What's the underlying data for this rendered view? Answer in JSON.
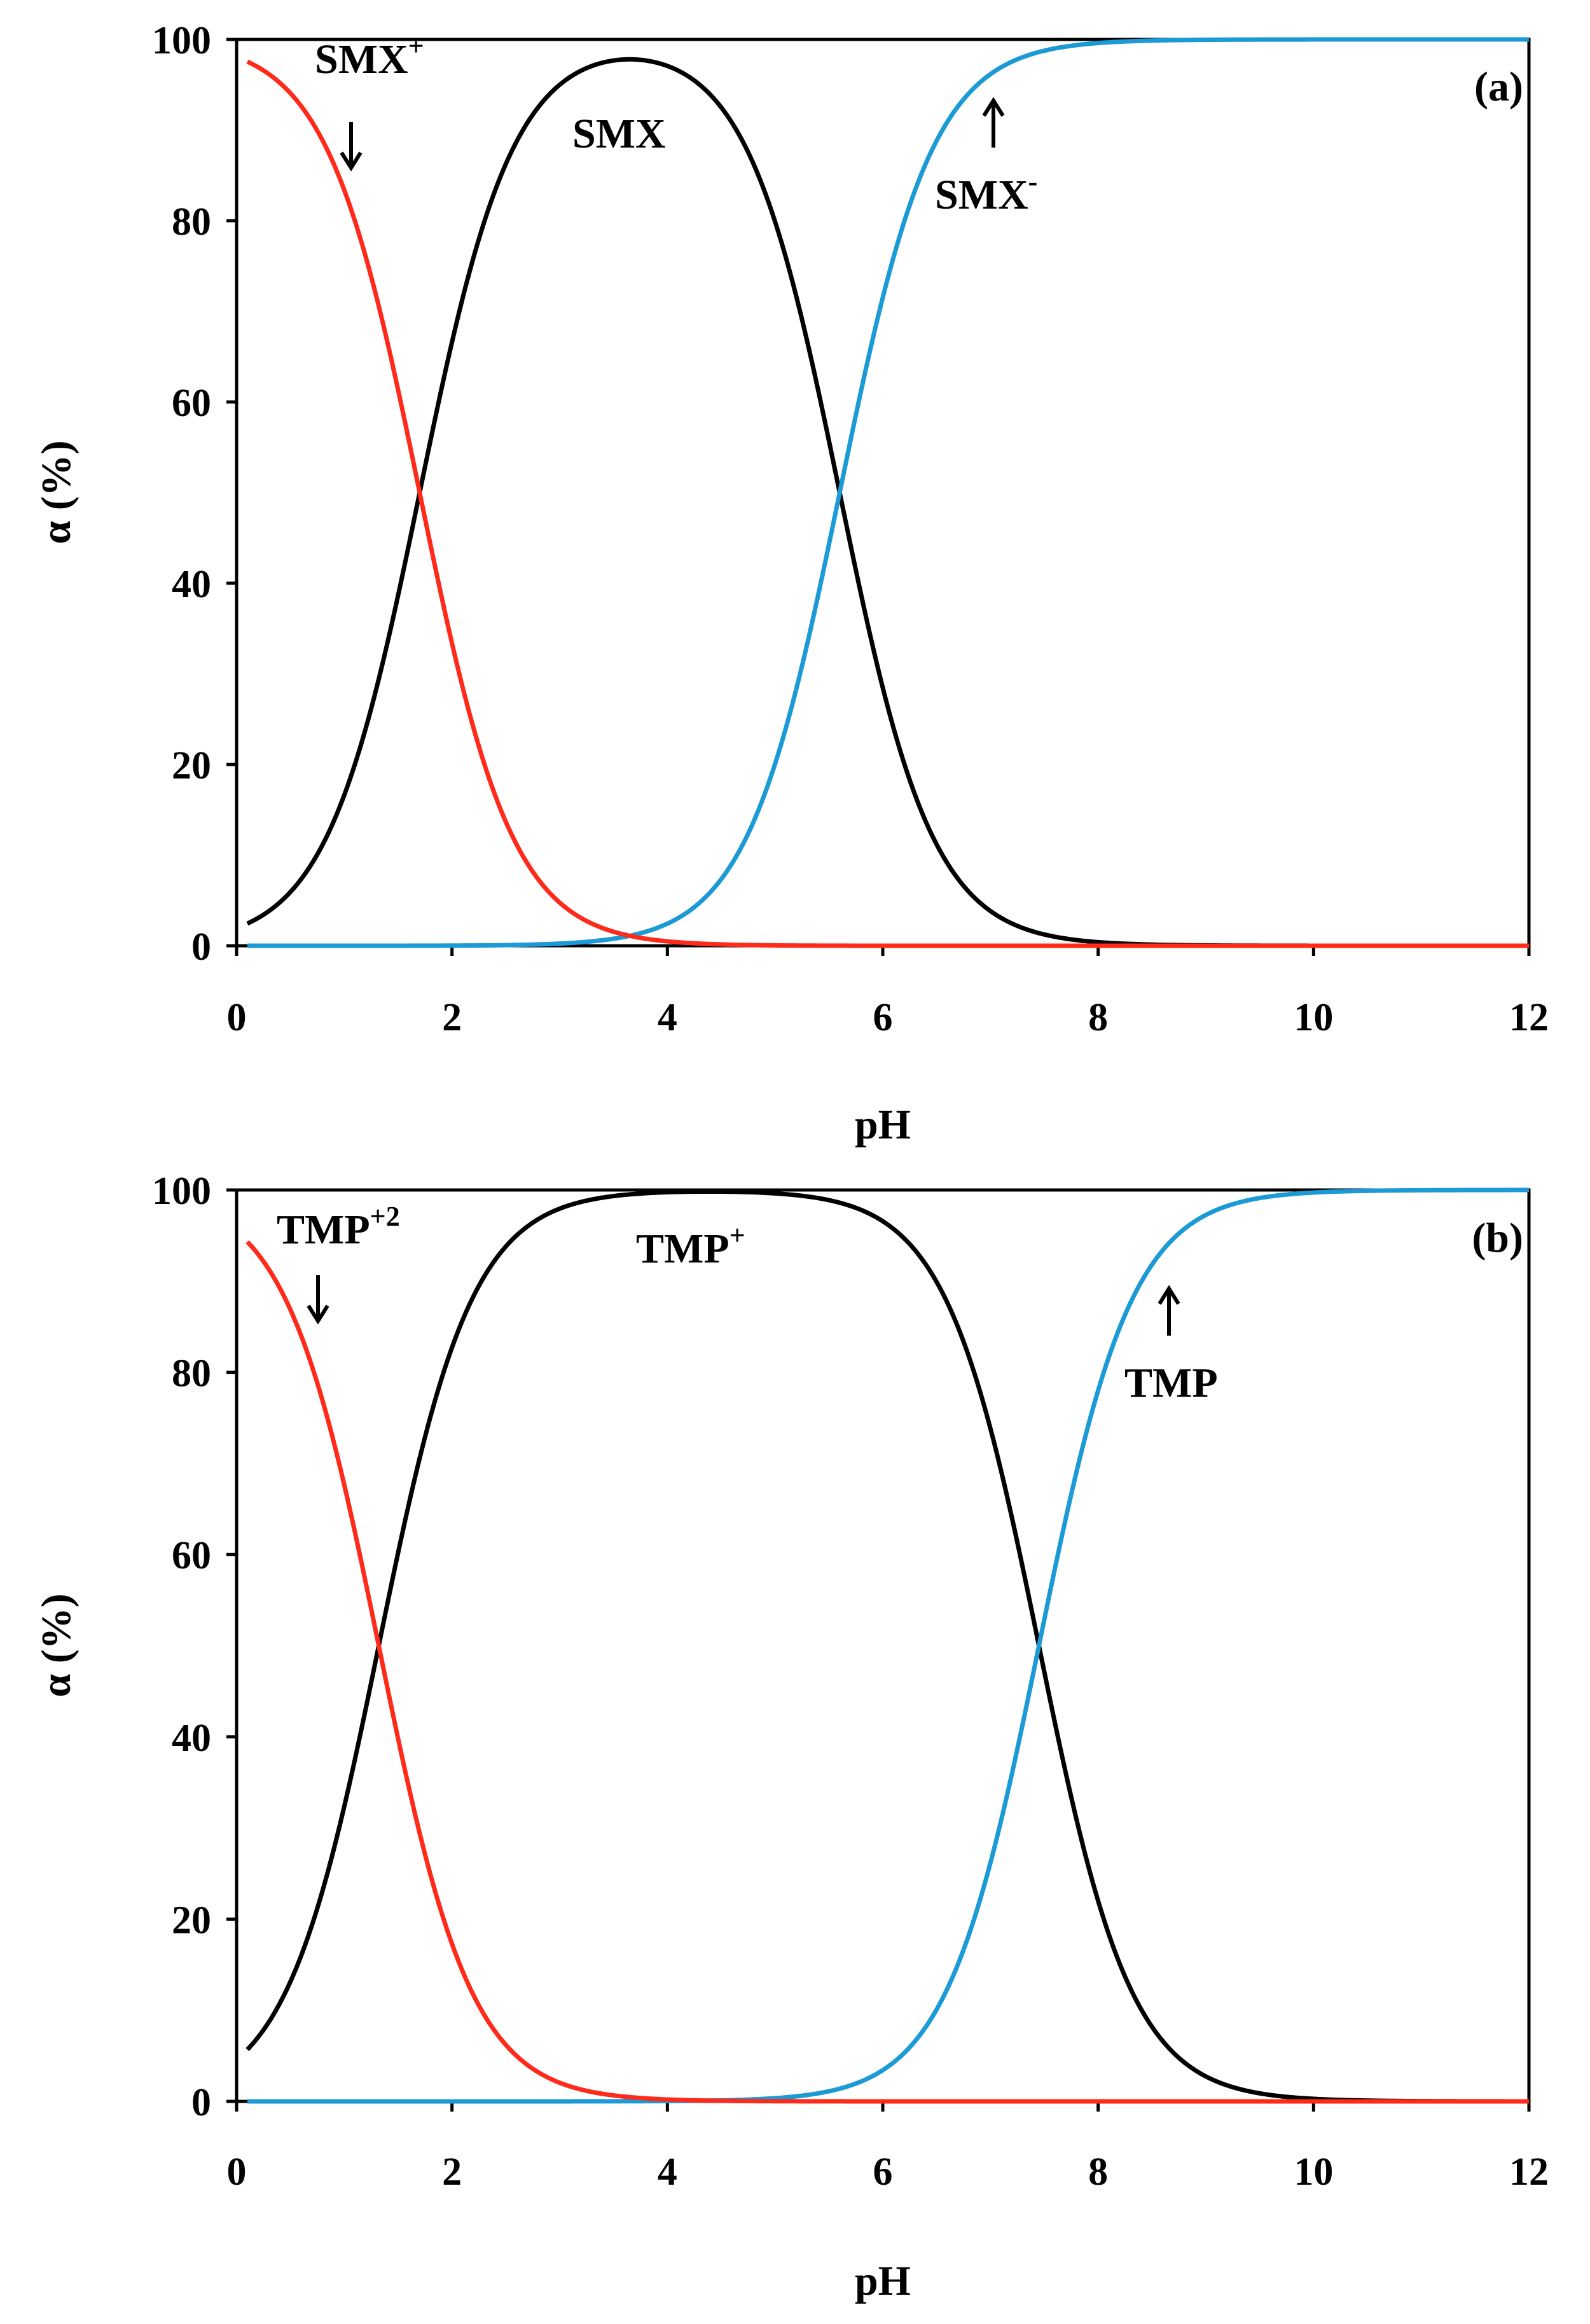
{
  "chart_data": [
    {
      "type": "line",
      "panel": "(a)",
      "xlabel": "pH",
      "ylabel": "α (%)",
      "xlim": [
        0,
        12
      ],
      "ylim": [
        0,
        100
      ],
      "xticks": [
        "0",
        "2",
        "4",
        "6",
        "8",
        "10",
        "12"
      ],
      "yticks": [
        "0",
        "20",
        "40",
        "60",
        "80",
        "100"
      ],
      "pKa": [
        1.7,
        5.6
      ],
      "series": [
        {
          "name": "SMX+",
          "color": "#ff2a1a",
          "values_at_pH": {
            "0.1": 97.5,
            "1": 83.4,
            "1.7": 50,
            "2": 33.4,
            "3": 4.8,
            "4": 0.4,
            "5": 0.0,
            "12": 0.0
          }
        },
        {
          "name": "SMX",
          "color": "#000000",
          "values_at_pH": {
            "0.1": 2.5,
            "1": 16.6,
            "1.7": 50,
            "2": 66.5,
            "3": 95.0,
            "3.65": 97.8,
            "4": 97.2,
            "5": 79.9,
            "5.6": 50,
            "6": 28.5,
            "7": 3.8,
            "8": 0.4,
            "12": 0.0
          }
        },
        {
          "name": "SMX-",
          "color": "#1b9ad6",
          "values_at_pH": {
            "0.1": 0.0,
            "3": 0.1,
            "4": 2.5,
            "5": 20.1,
            "5.6": 50,
            "6": 71.5,
            "7": 96.2,
            "8": 99.6,
            "12": 100.0
          }
        }
      ],
      "labels": [
        {
          "base": "SMX",
          "sup": "+"
        },
        {
          "base": "SMX",
          "sup": ""
        },
        {
          "base": "SMX",
          "sup": "-"
        }
      ]
    },
    {
      "type": "line",
      "panel": "(b)",
      "xlabel": "pH",
      "ylabel": "α (%)",
      "xlim": [
        0,
        12
      ],
      "ylim": [
        0,
        100
      ],
      "xticks": [
        "0",
        "2",
        "4",
        "6",
        "8",
        "10",
        "12"
      ],
      "yticks": [
        "0",
        "20",
        "40",
        "60",
        "80",
        "100"
      ],
      "pKa": [
        1.32,
        7.45
      ],
      "series": [
        {
          "name": "TMP+2",
          "color": "#ff2a1a",
          "values_at_pH": {
            "0.1": 94.3,
            "1": 67.6,
            "1.32": 50,
            "2": 17.3,
            "3": 2.0,
            "4": 0.2,
            "5": 0.0,
            "12": 0.0
          }
        },
        {
          "name": "TMP+",
          "color": "#000000",
          "values_at_pH": {
            "0.1": 5.7,
            "1": 32.4,
            "1.32": 50,
            "2": 82.7,
            "3": 97.9,
            "4": 99.7,
            "5": 99.6,
            "6": 96.6,
            "7": 73.8,
            "7.45": 50,
            "8": 22.0,
            "9": 2.7,
            "10": 0.3,
            "12": 0.0
          }
        },
        {
          "name": "TMP",
          "color": "#1b9ad6",
          "values_at_pH": {
            "0.1": 0.0,
            "4": 0.0,
            "5": 0.4,
            "6": 3.4,
            "7": 26.2,
            "7.45": 50,
            "8": 78.0,
            "9": 97.3,
            "10": 99.7,
            "12": 100.0
          }
        }
      ],
      "labels": [
        {
          "base": "TMP",
          "sup": "+2"
        },
        {
          "base": "TMP",
          "sup": "+"
        },
        {
          "base": "TMP",
          "sup": ""
        }
      ]
    }
  ]
}
